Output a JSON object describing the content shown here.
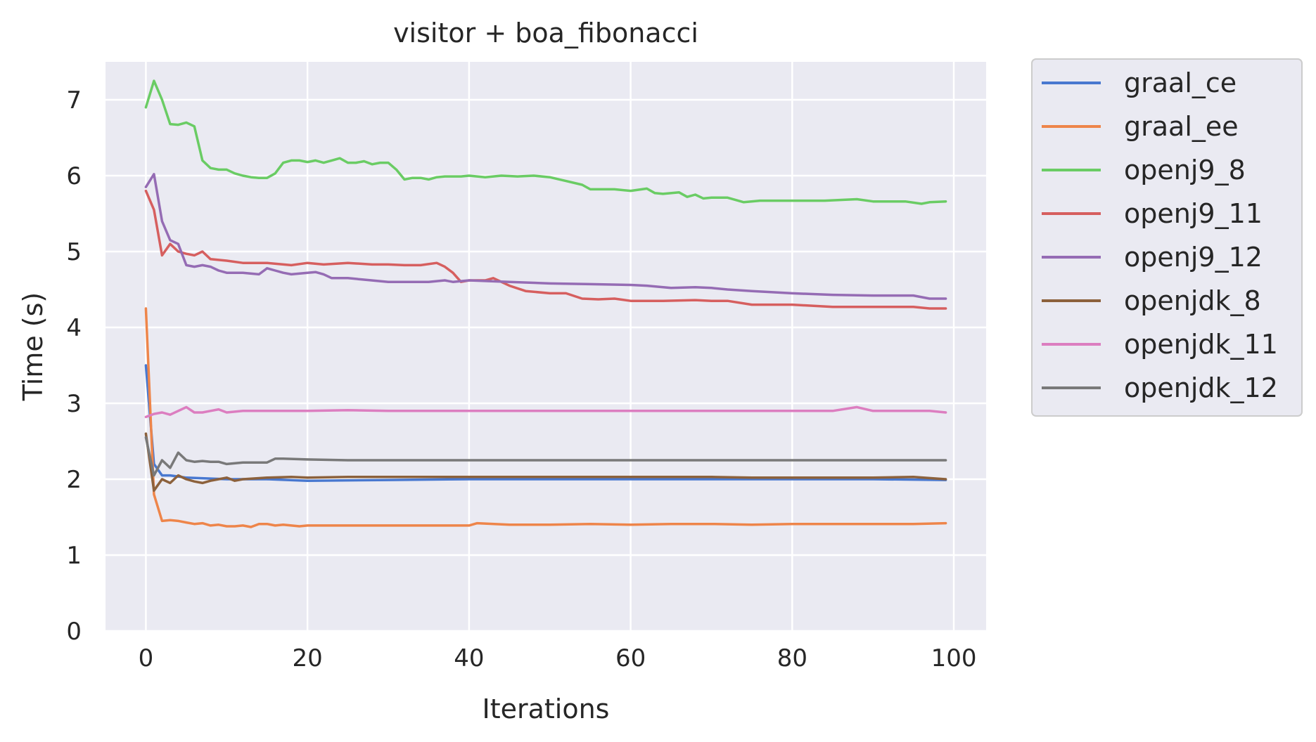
{
  "chart_data": {
    "type": "line",
    "title": "visitor + boa_fibonacci",
    "xlabel": "Iterations",
    "ylabel": "Time (s)",
    "xlim": [
      -5,
      104
    ],
    "ylim": [
      0,
      7.5
    ],
    "xticks": [
      0,
      20,
      40,
      60,
      80,
      100
    ],
    "yticks": [
      0,
      1,
      2,
      3,
      4,
      5,
      6,
      7
    ],
    "grid": true,
    "legend_position": "outside-right",
    "series": [
      {
        "name": "graal_ce",
        "color": "#4878d0",
        "x": [
          0,
          1,
          2,
          3,
          5,
          10,
          15,
          20,
          30,
          40,
          50,
          60,
          70,
          80,
          90,
          99
        ],
        "y": [
          3.5,
          2.2,
          2.05,
          2.05,
          2.02,
          2.0,
          2.0,
          1.98,
          1.99,
          2.0,
          2.0,
          2.0,
          2.0,
          2.0,
          2.0,
          1.99
        ]
      },
      {
        "name": "graal_ee",
        "color": "#ee854a",
        "x": [
          0,
          1,
          2,
          3,
          4,
          5,
          6,
          7,
          8,
          9,
          10,
          11,
          12,
          13,
          14,
          15,
          16,
          17,
          18,
          19,
          20,
          25,
          30,
          35,
          40,
          41,
          45,
          50,
          55,
          60,
          65,
          70,
          75,
          80,
          85,
          90,
          95,
          99
        ],
        "y": [
          4.25,
          1.8,
          1.45,
          1.46,
          1.45,
          1.43,
          1.41,
          1.42,
          1.39,
          1.4,
          1.38,
          1.38,
          1.39,
          1.37,
          1.41,
          1.41,
          1.39,
          1.4,
          1.39,
          1.38,
          1.39,
          1.39,
          1.39,
          1.39,
          1.39,
          1.42,
          1.4,
          1.4,
          1.41,
          1.4,
          1.41,
          1.41,
          1.4,
          1.41,
          1.41,
          1.41,
          1.41,
          1.42
        ]
      },
      {
        "name": "openj9_8",
        "color": "#6acc64",
        "x": [
          0,
          1,
          2,
          3,
          4,
          5,
          6,
          7,
          8,
          9,
          10,
          11,
          12,
          13,
          14,
          15,
          16,
          17,
          18,
          19,
          20,
          21,
          22,
          23,
          24,
          25,
          26,
          27,
          28,
          29,
          30,
          31,
          32,
          33,
          34,
          35,
          36,
          37,
          38,
          39,
          40,
          42,
          44,
          46,
          48,
          50,
          52,
          54,
          55,
          56,
          58,
          60,
          62,
          63,
          64,
          66,
          67,
          68,
          69,
          70,
          72,
          74,
          76,
          78,
          80,
          84,
          88,
          90,
          94,
          96,
          97,
          99
        ],
        "y": [
          6.9,
          7.25,
          7.0,
          6.68,
          6.67,
          6.7,
          6.65,
          6.2,
          6.1,
          6.08,
          6.08,
          6.03,
          6.0,
          5.98,
          5.97,
          5.97,
          6.03,
          6.17,
          6.2,
          6.2,
          6.18,
          6.2,
          6.17,
          6.2,
          6.23,
          6.17,
          6.17,
          6.19,
          6.15,
          6.17,
          6.17,
          6.08,
          5.95,
          5.97,
          5.97,
          5.95,
          5.98,
          5.99,
          5.99,
          5.99,
          6.0,
          5.98,
          6.0,
          5.99,
          6.0,
          5.98,
          5.93,
          5.88,
          5.82,
          5.82,
          5.82,
          5.8,
          5.83,
          5.77,
          5.76,
          5.78,
          5.72,
          5.75,
          5.7,
          5.71,
          5.71,
          5.65,
          5.67,
          5.67,
          5.67,
          5.67,
          5.69,
          5.66,
          5.66,
          5.63,
          5.65,
          5.66
        ]
      },
      {
        "name": "openj9_11",
        "color": "#d65f5f",
        "x": [
          0,
          1,
          2,
          3,
          4,
          5,
          6,
          7,
          8,
          10,
          12,
          15,
          18,
          20,
          22,
          25,
          28,
          30,
          32,
          34,
          36,
          37,
          38,
          39,
          40,
          42,
          43,
          45,
          47,
          50,
          52,
          54,
          56,
          58,
          60,
          64,
          68,
          70,
          72,
          75,
          80,
          85,
          90,
          95,
          97,
          99
        ],
        "y": [
          5.8,
          5.55,
          4.95,
          5.1,
          5.0,
          4.97,
          4.95,
          5.0,
          4.9,
          4.88,
          4.85,
          4.85,
          4.82,
          4.85,
          4.83,
          4.85,
          4.83,
          4.83,
          4.82,
          4.82,
          4.85,
          4.8,
          4.72,
          4.6,
          4.62,
          4.62,
          4.65,
          4.55,
          4.48,
          4.45,
          4.45,
          4.38,
          4.37,
          4.38,
          4.35,
          4.35,
          4.36,
          4.35,
          4.35,
          4.3,
          4.3,
          4.27,
          4.27,
          4.27,
          4.25,
          4.25
        ]
      },
      {
        "name": "openj9_12",
        "color": "#956cb4",
        "x": [
          0,
          1,
          2,
          3,
          4,
          5,
          6,
          7,
          8,
          9,
          10,
          12,
          14,
          15,
          16,
          17,
          18,
          20,
          21,
          22,
          23,
          25,
          27,
          30,
          32,
          35,
          37,
          38,
          40,
          45,
          50,
          55,
          60,
          62,
          65,
          68,
          70,
          72,
          75,
          80,
          85,
          90,
          95,
          97,
          99
        ],
        "y": [
          5.85,
          6.02,
          5.4,
          5.15,
          5.1,
          4.82,
          4.8,
          4.82,
          4.8,
          4.75,
          4.72,
          4.72,
          4.7,
          4.78,
          4.75,
          4.72,
          4.7,
          4.72,
          4.73,
          4.7,
          4.65,
          4.65,
          4.63,
          4.6,
          4.6,
          4.6,
          4.62,
          4.6,
          4.62,
          4.6,
          4.58,
          4.57,
          4.56,
          4.55,
          4.52,
          4.53,
          4.52,
          4.5,
          4.48,
          4.45,
          4.43,
          4.42,
          4.42,
          4.38,
          4.38
        ]
      },
      {
        "name": "openjdk_8",
        "color": "#8c613c",
        "x": [
          0,
          1,
          2,
          3,
          4,
          5,
          6,
          7,
          8,
          9,
          10,
          11,
          12,
          15,
          18,
          20,
          25,
          30,
          35,
          40,
          45,
          50,
          55,
          60,
          65,
          70,
          75,
          80,
          85,
          90,
          95,
          99
        ],
        "y": [
          2.6,
          1.85,
          2.0,
          1.95,
          2.05,
          2.0,
          1.97,
          1.95,
          1.98,
          2.0,
          2.02,
          1.98,
          2.0,
          2.02,
          2.03,
          2.02,
          2.03,
          2.03,
          2.03,
          2.03,
          2.03,
          2.03,
          2.03,
          2.03,
          2.03,
          2.03,
          2.02,
          2.02,
          2.02,
          2.02,
          2.03,
          2.0
        ]
      },
      {
        "name": "openjdk_11",
        "color": "#dc7ec0",
        "x": [
          0,
          1,
          2,
          3,
          4,
          5,
          6,
          7,
          8,
          9,
          10,
          12,
          15,
          20,
          25,
          30,
          35,
          40,
          45,
          50,
          55,
          60,
          65,
          70,
          75,
          80,
          85,
          88,
          90,
          95,
          97,
          99
        ],
        "y": [
          2.82,
          2.86,
          2.88,
          2.85,
          2.9,
          2.95,
          2.88,
          2.88,
          2.9,
          2.92,
          2.88,
          2.9,
          2.9,
          2.9,
          2.91,
          2.9,
          2.9,
          2.9,
          2.9,
          2.9,
          2.9,
          2.9,
          2.9,
          2.9,
          2.9,
          2.9,
          2.9,
          2.95,
          2.9,
          2.9,
          2.9,
          2.88
        ]
      },
      {
        "name": "openjdk_12",
        "color": "#797979",
        "x": [
          0,
          1,
          2,
          3,
          4,
          5,
          6,
          7,
          8,
          9,
          10,
          12,
          15,
          16,
          17,
          20,
          25,
          30,
          35,
          40,
          45,
          50,
          55,
          60,
          65,
          70,
          75,
          80,
          85,
          90,
          95,
          99
        ],
        "y": [
          2.55,
          2.05,
          2.25,
          2.15,
          2.35,
          2.25,
          2.23,
          2.24,
          2.23,
          2.23,
          2.2,
          2.22,
          2.22,
          2.27,
          2.27,
          2.26,
          2.25,
          2.25,
          2.25,
          2.25,
          2.25,
          2.25,
          2.25,
          2.25,
          2.25,
          2.25,
          2.25,
          2.25,
          2.25,
          2.25,
          2.25,
          2.25
        ]
      }
    ]
  }
}
